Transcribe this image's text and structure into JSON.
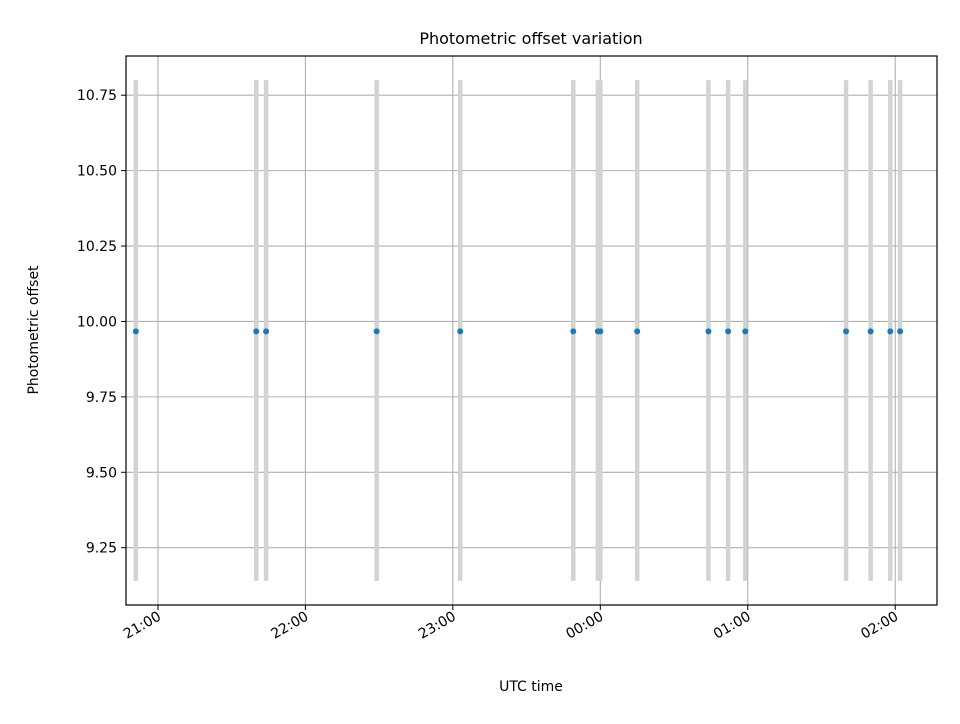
{
  "chart_data": {
    "type": "scatter",
    "title": "Photometric offset variation",
    "xlabel": "UTC time",
    "ylabel": "Photometric offset",
    "x_ticks": [
      "21:00",
      "22:00",
      "23:00",
      "00:00",
      "01:00",
      "02:00"
    ],
    "y_ticks": [
      "9.25",
      "9.50",
      "9.75",
      "10.00",
      "10.25",
      "10.50",
      "10.75"
    ],
    "xlim": [
      "20:47",
      "02:17"
    ],
    "ylim": [
      9.06,
      10.88
    ],
    "grid": true,
    "colors": {
      "points": "#1f77b4",
      "error_bars": "#d3d3d3",
      "grid": "#b0b0b0"
    },
    "series": [
      {
        "x": [
          "20:51",
          "21:40",
          "21:44",
          "22:29",
          "23:03",
          "23:49",
          "23:59",
          "24:00",
          "24:15",
          "24:44",
          "24:52",
          "24:59",
          "25:40",
          "25:50",
          "25:58",
          "26:02"
        ],
        "y": [
          9.967,
          9.967,
          9.967,
          9.967,
          9.967,
          9.967,
          9.967,
          9.967,
          9.967,
          9.967,
          9.967,
          9.967,
          9.967,
          9.967,
          9.967,
          9.967
        ],
        "error_low": [
          9.14,
          9.14,
          9.14,
          9.14,
          9.14,
          9.14,
          9.14,
          9.14,
          9.14,
          9.14,
          9.14,
          9.14,
          9.14,
          9.14,
          9.14,
          9.14
        ],
        "error_high": [
          10.8,
          10.8,
          10.8,
          10.8,
          10.8,
          10.8,
          10.8,
          10.8,
          10.8,
          10.8,
          10.8,
          10.8,
          10.8,
          10.8,
          10.8,
          10.8
        ]
      }
    ]
  }
}
